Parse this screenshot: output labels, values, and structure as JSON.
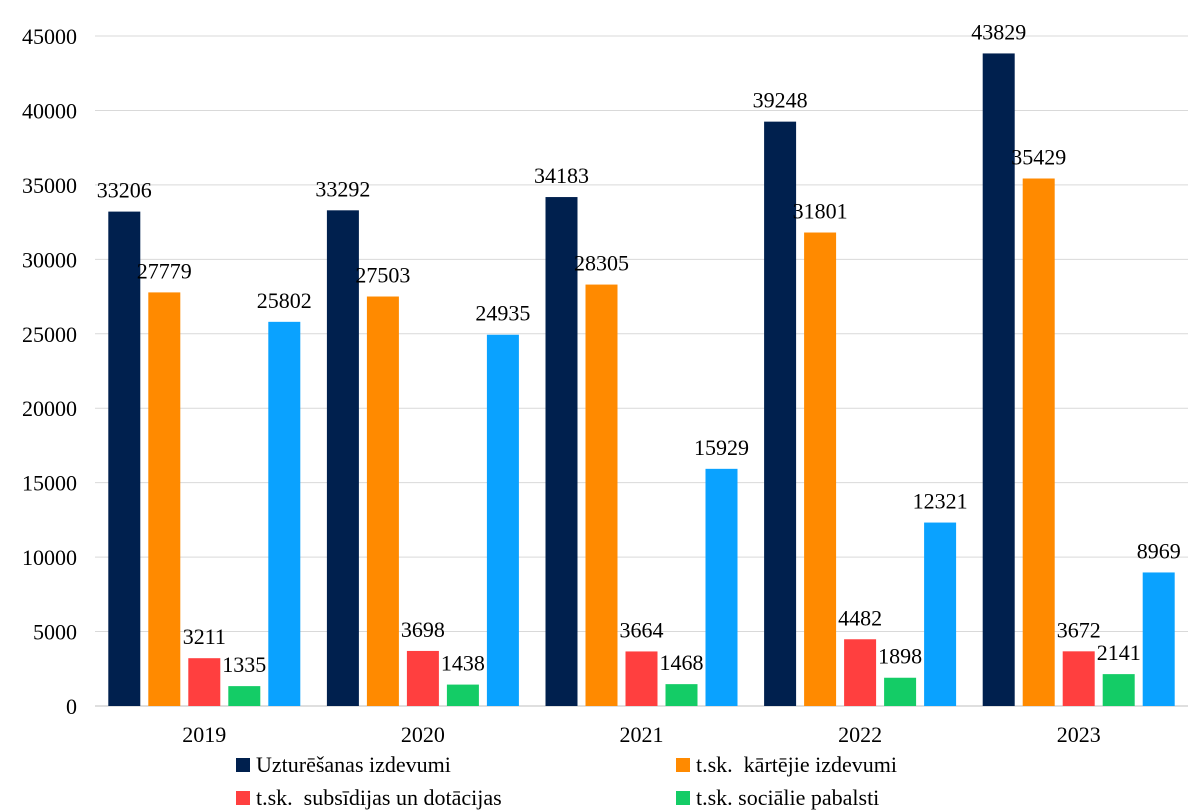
{
  "chart_data": {
    "type": "bar",
    "categories": [
      "2019",
      "2020",
      "2021",
      "2022",
      "2023"
    ],
    "series": [
      {
        "name": "Uzturēšanas izdevumi",
        "values": [
          33206,
          33292,
          34183,
          39248,
          43829
        ],
        "color": "#00204e"
      },
      {
        "name": "t.sk.  kārtējie izdevumi",
        "values": [
          27779,
          27503,
          28305,
          31801,
          35429
        ],
        "color": "#ff8a00"
      },
      {
        "name": "t.sk.  subsīdijas un dotācijas",
        "values": [
          3211,
          3698,
          3664,
          4482,
          3672
        ],
        "color": "#ff3f3f"
      },
      {
        "name": "t.sk. sociālie pabalsti",
        "values": [
          1335,
          1438,
          1468,
          1898,
          2141
        ],
        "color": "#14cc66"
      },
      {
        "name": "",
        "values": [
          25802,
          24935,
          15929,
          12321,
          8969
        ],
        "color": "#0aa2ff"
      }
    ],
    "yticks": [
      "0",
      "5000",
      "10000",
      "15000",
      "20000",
      "25000",
      "30000",
      "35000",
      "40000",
      "45000"
    ],
    "ylim": [
      0,
      45000
    ],
    "grid": true,
    "legend_position": "bottom"
  }
}
